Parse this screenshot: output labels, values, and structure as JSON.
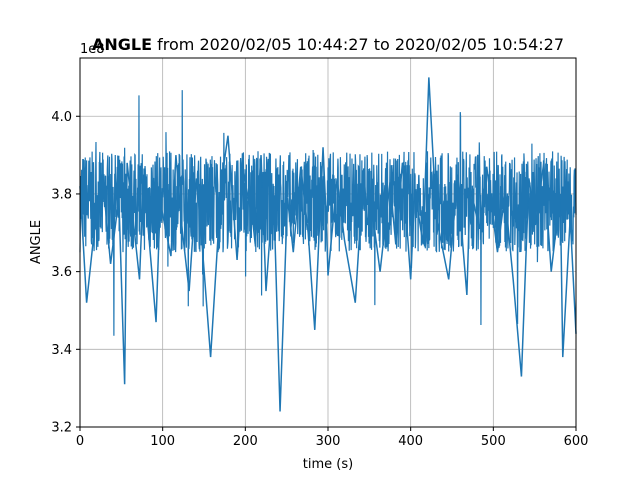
{
  "chart_data": {
    "type": "line",
    "title_bold": "ANGLE",
    "title_rest": " from 2020/02/05 10:44:27 to 2020/02/05 10:54:27",
    "xlabel": "time (s)",
    "ylabel": "ANGLE",
    "y_offset_label": "1e8",
    "xlim": [
      0,
      600
    ],
    "ylim": [
      3.2,
      4.15
    ],
    "xticks": [
      0,
      100,
      200,
      300,
      400,
      500,
      600
    ],
    "xtick_labels": [
      "0",
      "100",
      "200",
      "300",
      "400",
      "500",
      "600"
    ],
    "yticks": [
      3.2,
      3.4,
      3.6,
      3.8,
      4.0
    ],
    "ytick_labels": [
      "3.2",
      "3.4",
      "3.6",
      "3.8",
      "4.0"
    ],
    "grid": true,
    "line_color": "#1f77b4",
    "x": [
      0,
      8,
      18,
      27,
      37,
      47,
      54,
      57,
      66,
      72,
      77,
      92,
      97,
      110,
      116,
      123,
      132,
      141,
      147,
      158,
      171,
      179,
      190,
      197,
      209,
      212,
      219,
      225,
      234,
      242,
      251,
      258,
      267,
      276,
      284,
      294,
      298,
      300,
      311,
      320,
      333,
      343,
      348,
      352,
      363,
      375,
      382,
      390,
      395,
      400,
      405,
      415,
      422,
      431,
      446,
      457,
      463,
      468,
      472,
      483,
      492,
      505,
      514,
      524,
      534,
      543,
      551,
      561,
      570,
      581,
      584,
      593,
      600
    ],
    "y": [
      3.82,
      3.52,
      3.72,
      3.85,
      3.62,
      3.79,
      3.31,
      3.88,
      3.7,
      3.58,
      3.85,
      3.47,
      3.78,
      3.64,
      3.9,
      3.72,
      3.55,
      3.84,
      3.69,
      3.38,
      3.83,
      3.95,
      3.63,
      3.86,
      3.73,
      3.67,
      3.9,
      3.55,
      3.82,
      3.24,
      3.79,
      3.65,
      3.87,
      3.7,
      3.45,
      3.92,
      3.73,
      3.59,
      3.84,
      3.68,
      3.52,
      3.86,
      3.72,
      3.78,
      3.6,
      3.83,
      3.67,
      3.88,
      3.73,
      3.58,
      3.81,
      3.67,
      4.1,
      3.74,
      3.58,
      3.85,
      3.67,
      3.54,
      3.82,
      3.71,
      3.87,
      3.65,
      3.8,
      3.58,
      3.33,
      3.84,
      3.72,
      3.88,
      3.6,
      3.8,
      3.38,
      3.74,
      3.44
    ]
  }
}
